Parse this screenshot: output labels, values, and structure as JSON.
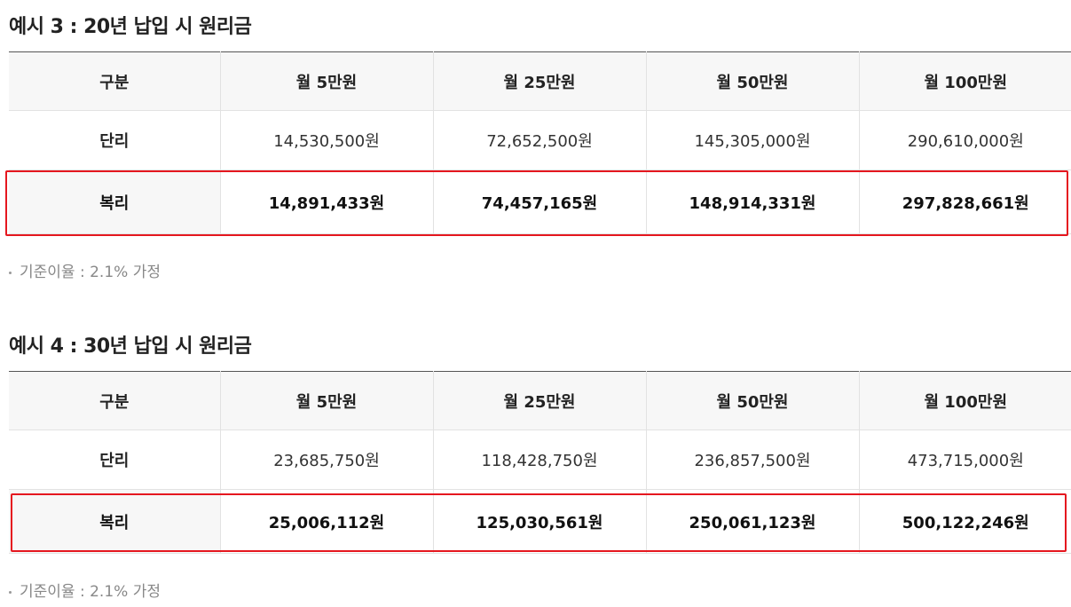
{
  "sections": [
    {
      "title": "예시 3 : 20년 납입 시 원리금",
      "headers": [
        "구분",
        "월 5만원",
        "월 25만원",
        "월 50만원",
        "월 100만원"
      ],
      "rows": [
        {
          "label": "단리",
          "values": [
            "14,530,500원",
            "72,652,500원",
            "145,305,000원",
            "290,610,000원"
          ]
        },
        {
          "label": "복리",
          "values": [
            "14,891,433원",
            "74,457,165원",
            "148,914,331원",
            "297,828,661원"
          ]
        }
      ],
      "note": "기준이율 : 2.1% 가정"
    },
    {
      "title": "예시 4 : 30년 납입 시 원리금",
      "headers": [
        "구분",
        "월 5만원",
        "월 25만원",
        "월 50만원",
        "월 100만원"
      ],
      "rows": [
        {
          "label": "단리",
          "values": [
            "23,685,750원",
            "118,428,750원",
            "236,857,500원",
            "473,715,000원"
          ]
        },
        {
          "label": "복리",
          "values": [
            "25,006,112원",
            "125,030,561원",
            "250,061,123원",
            "500,122,246원"
          ]
        }
      ],
      "note": "기준이율 : 2.1% 가정"
    }
  ],
  "colors": {
    "highlight_border": "#e5171f",
    "header_bg": "#f7f7f7",
    "note_text": "#888888"
  }
}
